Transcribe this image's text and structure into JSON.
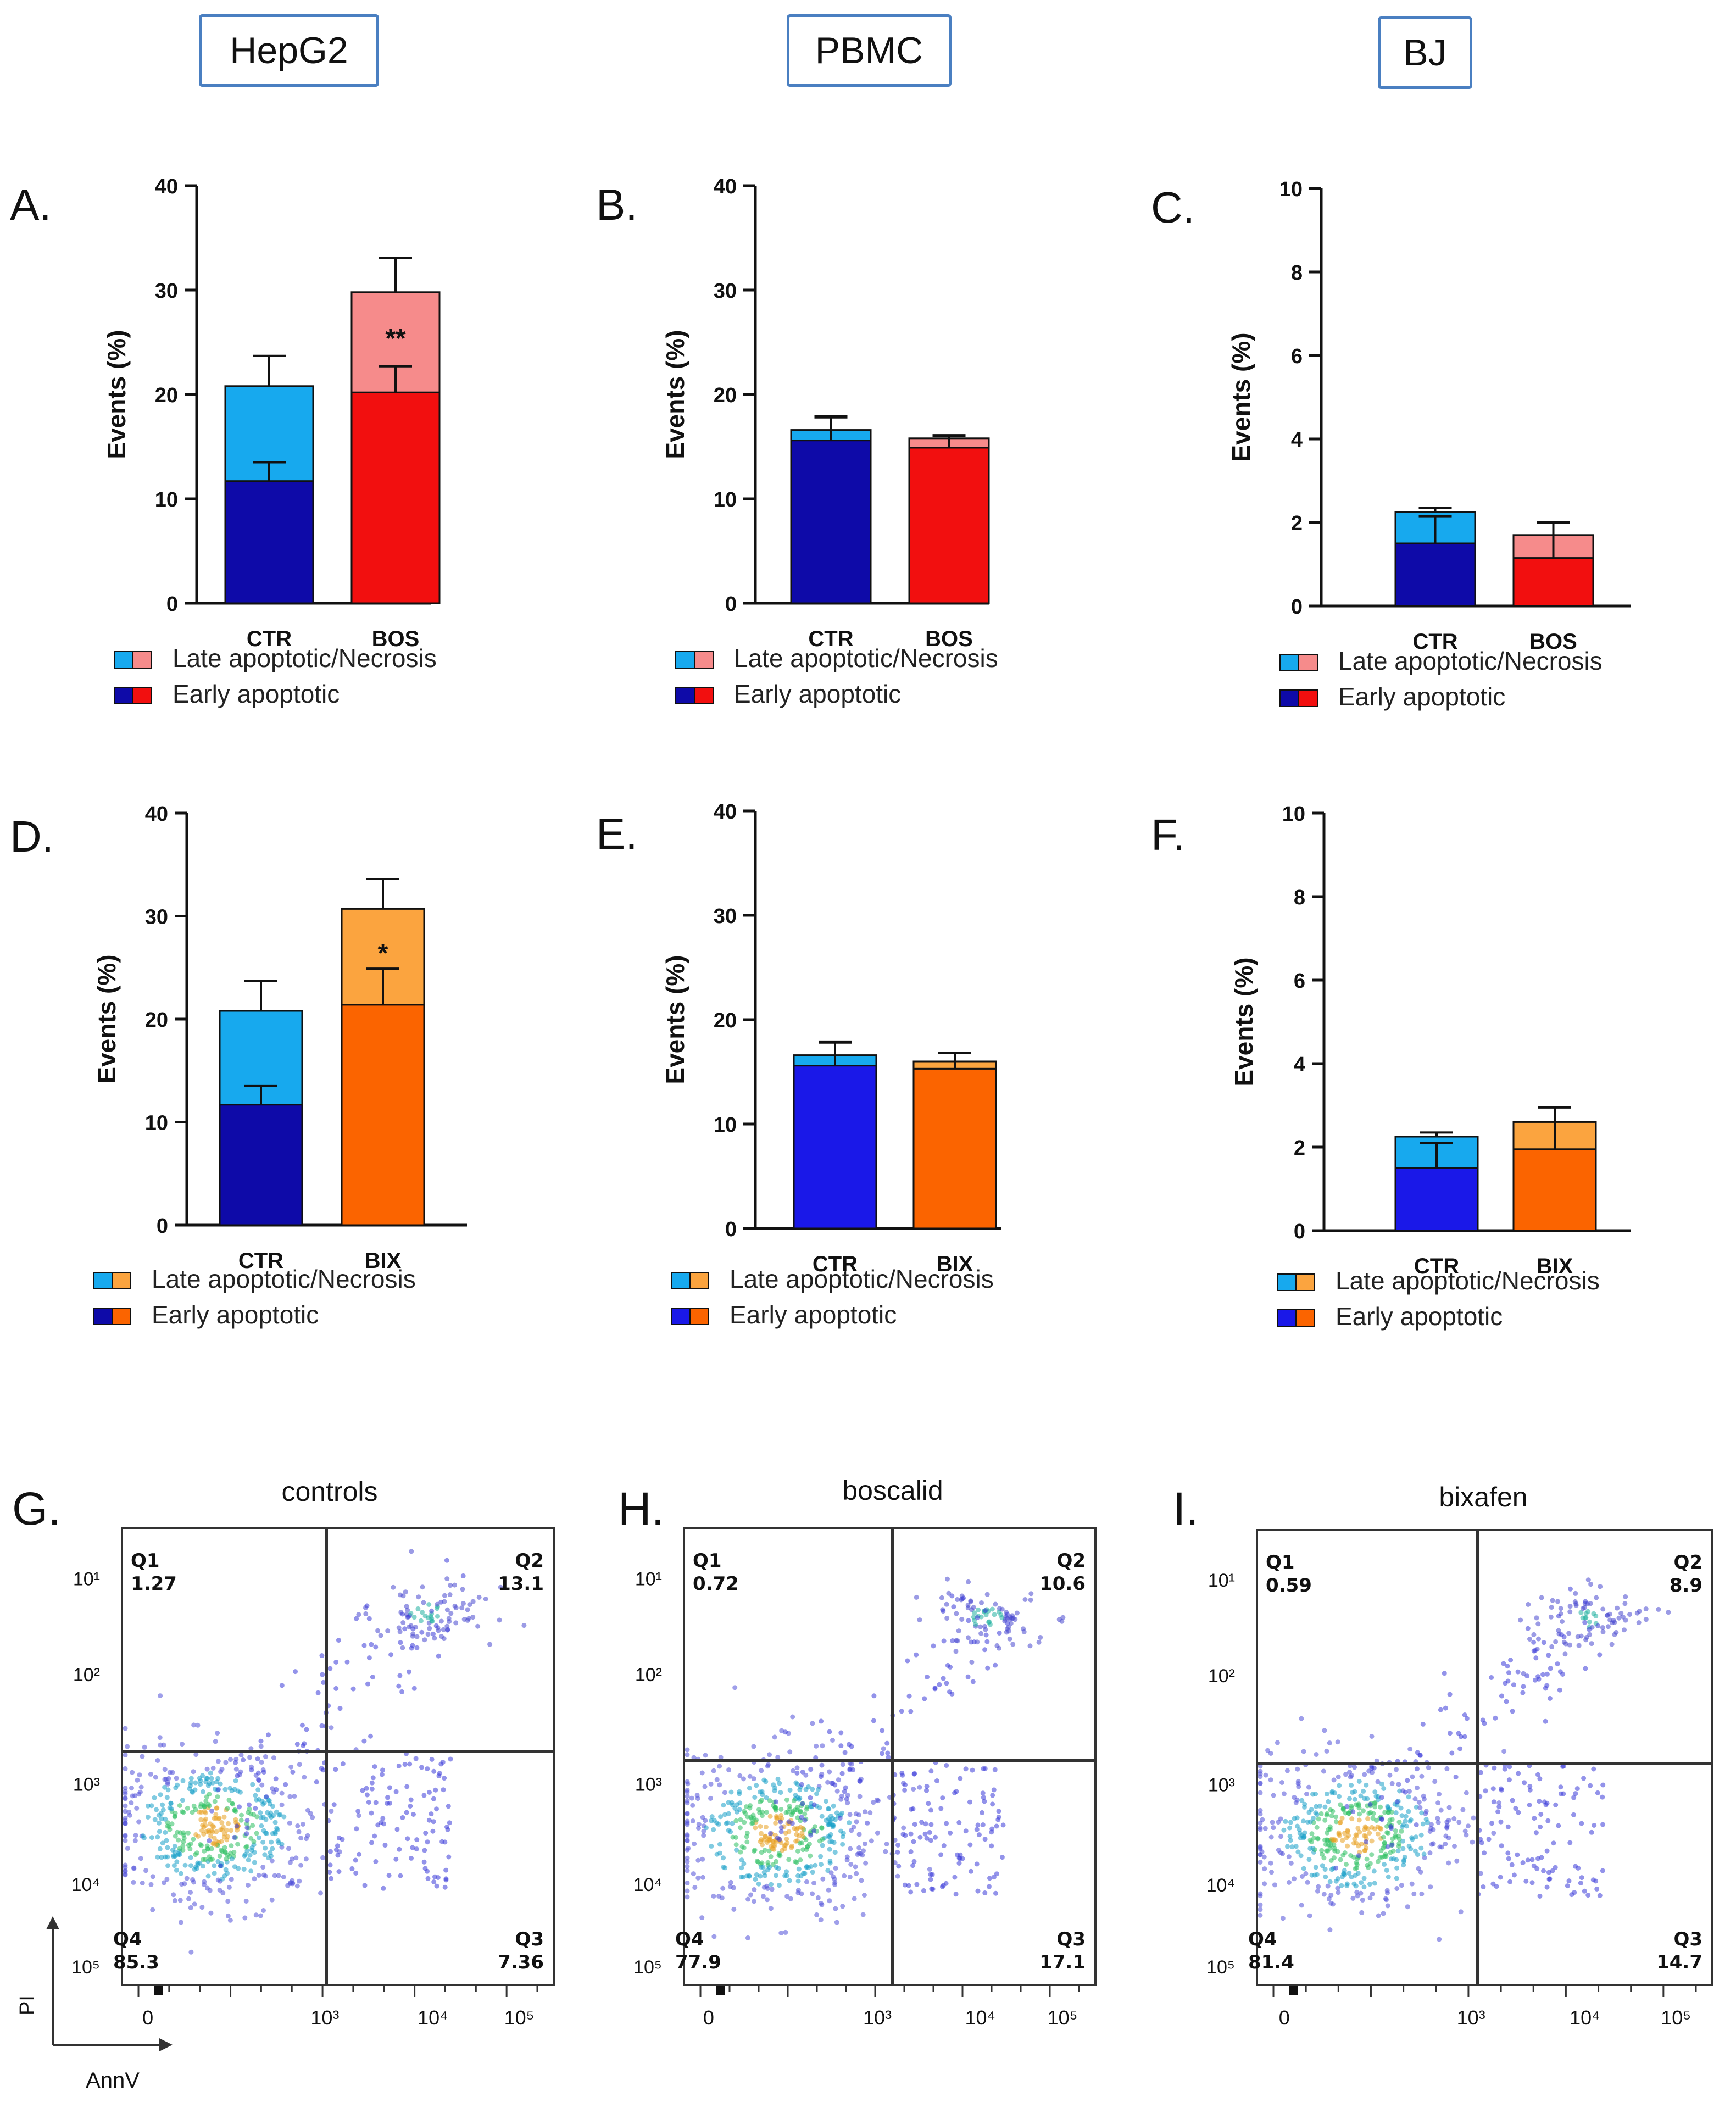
{
  "column_headers": [
    "HepG2",
    "PBMC",
    "BJ"
  ],
  "legend": {
    "late": "Late apoptotic/Necrosis",
    "early": "Early apoptotic"
  },
  "colors": {
    "ctr_early": "#0e0aa8",
    "ctr_early_bright": "#1a18e8",
    "ctr_late": "#17a9ee",
    "bos_early": "#f20f0f",
    "bos_late": "#f68b8b",
    "bix_early": "#fb6400",
    "bix_late": "#fba43f",
    "box_border": "#4a7fc1"
  },
  "chart_data": [
    {
      "panel": "A.",
      "type": "bar",
      "stacked": true,
      "cell": "HepG2",
      "ylabel": "Events (%)",
      "ylim": [
        0,
        40
      ],
      "yticks": [
        0,
        10,
        20,
        30,
        40
      ],
      "categories": [
        "CTR",
        "BOS"
      ],
      "series": [
        {
          "name": "Early apoptotic",
          "values": [
            11.7,
            20.2
          ],
          "errors": [
            1.8,
            2.5
          ]
        },
        {
          "name": "Late apoptotic/Necrosis",
          "values": [
            9.1,
            9.6
          ],
          "errors": [
            2.9,
            3.3
          ]
        }
      ],
      "annotation": "**"
    },
    {
      "panel": "B.",
      "type": "bar",
      "stacked": true,
      "cell": "PBMC",
      "ylabel": "Events (%)",
      "ylim": [
        0,
        40
      ],
      "yticks": [
        0,
        10,
        20,
        30,
        40
      ],
      "categories": [
        "CTR",
        "BOS"
      ],
      "series": [
        {
          "name": "Early apoptotic",
          "values": [
            15.6,
            14.9
          ],
          "errors": [
            2.3,
            1.1
          ]
        },
        {
          "name": "Late apoptotic/Necrosis",
          "values": [
            1.0,
            0.9
          ],
          "errors": [
            1.2,
            0.3
          ]
        }
      ],
      "annotation": ""
    },
    {
      "panel": "C.",
      "type": "bar",
      "stacked": true,
      "cell": "BJ",
      "ylabel": "Events (%)",
      "ylim": [
        0,
        10
      ],
      "yticks": [
        0,
        2,
        4,
        6,
        8,
        10
      ],
      "categories": [
        "CTR",
        "BOS"
      ],
      "series": [
        {
          "name": "Early apoptotic",
          "values": [
            1.5,
            1.15
          ],
          "errors": [
            0.65,
            0.85
          ]
        },
        {
          "name": "Late apoptotic/Necrosis",
          "values": [
            0.75,
            0.55
          ],
          "errors": [
            0.1,
            0.3
          ]
        }
      ],
      "annotation": ""
    },
    {
      "panel": "D.",
      "type": "bar",
      "stacked": true,
      "cell": "HepG2",
      "ylabel": "Events (%)",
      "ylim": [
        0,
        40
      ],
      "yticks": [
        0,
        10,
        20,
        30,
        40
      ],
      "categories": [
        "CTR",
        "BIX"
      ],
      "series": [
        {
          "name": "Early apoptotic",
          "values": [
            11.7,
            21.4
          ],
          "errors": [
            1.8,
            3.5
          ]
        },
        {
          "name": "Late apoptotic/Necrosis",
          "values": [
            9.1,
            9.3
          ],
          "errors": [
            2.9,
            2.9
          ]
        }
      ],
      "annotation": "*"
    },
    {
      "panel": "E.",
      "type": "bar",
      "stacked": true,
      "cell": "PBMC",
      "ylabel": "Events (%)",
      "ylim": [
        0,
        40
      ],
      "yticks": [
        0,
        10,
        20,
        30,
        40
      ],
      "categories": [
        "CTR",
        "BIX"
      ],
      "series": [
        {
          "name": "Early apoptotic",
          "values": [
            15.6,
            15.3
          ],
          "errors": [
            2.3,
            1.5
          ]
        },
        {
          "name": "Late apoptotic/Necrosis",
          "values": [
            1.0,
            0.7
          ],
          "errors": [
            1.2,
            0.8
          ]
        }
      ],
      "annotation": ""
    },
    {
      "panel": "F.",
      "type": "bar",
      "stacked": true,
      "cell": "BJ",
      "ylabel": "Events (%)",
      "ylim": [
        0,
        10
      ],
      "yticks": [
        0,
        2,
        4,
        6,
        8,
        10
      ],
      "categories": [
        "CTR",
        "BIX"
      ],
      "series": [
        {
          "name": "Early apoptotic",
          "values": [
            1.5,
            1.95
          ],
          "errors": [
            0.6,
            1.0
          ]
        },
        {
          "name": "Late apoptotic/Necrosis",
          "values": [
            0.75,
            0.65
          ],
          "errors": [
            0.1,
            0.35
          ]
        }
      ],
      "annotation": ""
    },
    {
      "panel": "G.",
      "type": "scatter",
      "title": "controls",
      "xlabel": "AnnV",
      "ylabel": "PI",
      "xticks": [
        "0",
        "10³",
        "10⁴",
        "10⁵"
      ],
      "yticks": [
        "10¹",
        "10²",
        "10³",
        "10⁴",
        "10⁵"
      ],
      "quadrants": {
        "Q1": "1.27",
        "Q2": "13.1",
        "Q3": "7.36",
        "Q4": "85.3"
      }
    },
    {
      "panel": "H.",
      "type": "scatter",
      "title": "boscalid",
      "xticks": [
        "0",
        "10³",
        "10⁴",
        "10⁵"
      ],
      "yticks": [
        "10¹",
        "10²",
        "10³",
        "10⁴",
        "10⁵"
      ],
      "quadrants": {
        "Q1": "0.72",
        "Q2": "10.6",
        "Q3": "17.1",
        "Q4": "77.9"
      }
    },
    {
      "panel": "I.",
      "type": "scatter",
      "title": "bixafen",
      "xticks": [
        "0",
        "10³",
        "10⁴",
        "10⁵"
      ],
      "yticks": [
        "10¹",
        "10²",
        "10³",
        "10⁴",
        "10⁵"
      ],
      "quadrants": {
        "Q1": "0.59",
        "Q2": "8.9",
        "Q3": "14.7",
        "Q4": "81.4"
      }
    }
  ]
}
